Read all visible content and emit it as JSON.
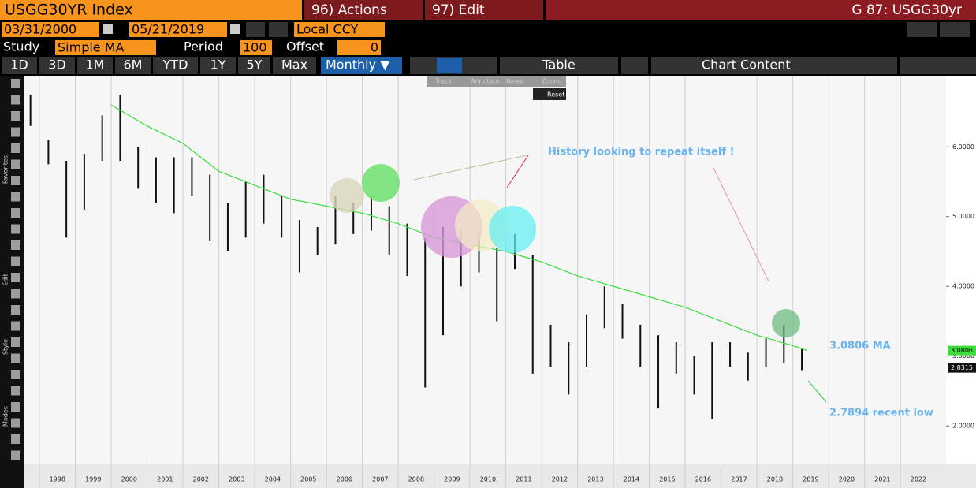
{
  "header": {
    "ticker": "USGG30YR Index",
    "actions": "96) Actions",
    "edit": "97) Edit",
    "chart_id": "G 87: USGG30yr"
  },
  "controls": {
    "start_date": "03/31/2000",
    "end_date": "05/21/2019",
    "currency": "Local CCY",
    "study_label": "Study",
    "study": "Simple MA",
    "period_label": "Period",
    "period": 100,
    "offset_label": "Offset",
    "offset": 0
  },
  "ranges": [
    "1D",
    "3D",
    "1M",
    "6M",
    "YTD",
    "1Y",
    "5Y",
    "Max"
  ],
  "frequency": "Monthly ▼",
  "table": "Table",
  "chart_content": "Chart Content",
  "mini_tools": [
    "Track",
    "Annotate",
    "News",
    "Zoom"
  ],
  "reset": "Reset",
  "side_labels": [
    "Favorites",
    "Edit",
    "Style",
    "Modes"
  ],
  "chart_data": {
    "type": "range-bar",
    "color": "#111111",
    "x": [
      1997.75,
      1998.25,
      1998.75,
      1999.25,
      1999.75,
      2000.25,
      2000.75,
      2001.25,
      2001.75,
      2002.25,
      2002.75,
      2003.25,
      2003.75,
      2004.25,
      2004.75,
      2005.25,
      2005.75,
      2006.25,
      2006.75,
      2007.25,
      2007.75,
      2008.25,
      2008.75,
      2009.25,
      2009.75,
      2010.25,
      2010.75,
      2011.25,
      2011.75,
      2012.25,
      2012.75,
      2013.25,
      2013.75,
      2014.25,
      2014.75,
      2015.25,
      2015.75,
      2016.25,
      2016.75,
      2017.25,
      2017.75,
      2018.25,
      2018.75,
      2019.25
    ],
    "high": [
      6.75,
      6.1,
      5.8,
      5.9,
      6.45,
      6.75,
      6.0,
      5.85,
      5.85,
      5.85,
      5.6,
      5.2,
      5.5,
      5.6,
      5.3,
      4.95,
      4.85,
      5.3,
      5.2,
      5.3,
      5.15,
      4.9,
      4.7,
      4.85,
      4.8,
      4.8,
      4.55,
      4.75,
      4.45,
      3.45,
      3.2,
      3.6,
      4.0,
      3.75,
      3.45,
      3.3,
      3.2,
      3.0,
      3.2,
      3.2,
      3.05,
      3.25,
      3.45,
      3.1
    ],
    "low": [
      6.3,
      5.75,
      4.7,
      5.1,
      5.8,
      5.8,
      5.4,
      5.2,
      5.05,
      5.3,
      4.65,
      4.5,
      4.7,
      4.9,
      4.7,
      4.2,
      4.45,
      4.6,
      4.75,
      4.8,
      4.45,
      4.15,
      2.55,
      3.3,
      4.0,
      4.2,
      3.5,
      4.25,
      2.75,
      2.85,
      2.45,
      2.85,
      3.4,
      3.25,
      2.85,
      2.25,
      2.75,
      2.45,
      2.1,
      2.85,
      2.65,
      2.85,
      2.9,
      2.8
    ],
    "ma": {
      "color": "#3ddc3d",
      "x": [
        2000.0,
        2001,
        2002,
        2003,
        2004,
        2005,
        2006,
        2007,
        2008,
        2009,
        2010,
        2011,
        2012,
        2013,
        2014,
        2015,
        2016,
        2017,
        2018,
        2019,
        2019.4
      ],
      "values": [
        6.6,
        6.3,
        6.05,
        5.65,
        5.45,
        5.25,
        5.15,
        5.05,
        4.9,
        4.7,
        4.6,
        4.5,
        4.35,
        4.15,
        4.0,
        3.85,
        3.7,
        3.5,
        3.3,
        3.15,
        3.08
      ]
    },
    "ma_last": 3.0806,
    "last_price": 2.8315,
    "xlim": [
      1997.56,
      2023.27
    ],
    "ylim": [
      1.46,
      7.02
    ],
    "xticks": [
      1998,
      1999,
      2000,
      2001,
      2002,
      2003,
      2004,
      2005,
      2006,
      2007,
      2008,
      2009,
      2010,
      2011,
      2012,
      2013,
      2014,
      2015,
      2016,
      2017,
      2018,
      2019,
      2020,
      2021,
      2022
    ],
    "yticks": [
      {
        "value": 2,
        "label": "2.0000"
      },
      {
        "value": 3,
        "label": "3.0000"
      },
      {
        "value": 4,
        "label": "4.0000"
      },
      {
        "value": 5,
        "label": "5.0000"
      },
      {
        "value": 6,
        "label": "6.0000"
      }
    ],
    "grid": true,
    "annotations": [
      "History looking to repeat itself !",
      "3.0806 MA",
      "2.7894 recent low"
    ]
  }
}
